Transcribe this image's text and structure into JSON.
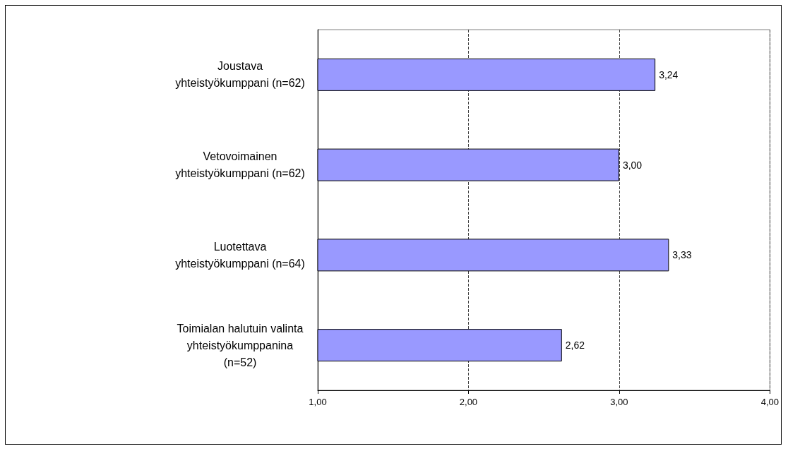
{
  "chart_data": {
    "type": "bar",
    "orientation": "horizontal",
    "categories": [
      "Joustava\nyhteistyökumppani (n=62)",
      "Vetovoimainen\nyhteistyökumppani (n=62)",
      "Luotettava\nyhteistyökumppani (n=64)",
      "Toimialan halutuin valinta\nyhteistyökumppanina\n(n=52)"
    ],
    "values": [
      3.24,
      3.0,
      3.33,
      2.62
    ],
    "value_labels": [
      "3,24",
      "3,00",
      "3,33",
      "2,62"
    ],
    "color": "#9999ff",
    "xlim": [
      1,
      4
    ],
    "xticks": [
      {
        "value": 1,
        "label": "1,00"
      },
      {
        "value": 2,
        "label": "2,00"
      },
      {
        "value": 3,
        "label": "3,00"
      },
      {
        "value": 4,
        "label": "4,00"
      }
    ],
    "grid": "x",
    "line_style": "dashed"
  }
}
